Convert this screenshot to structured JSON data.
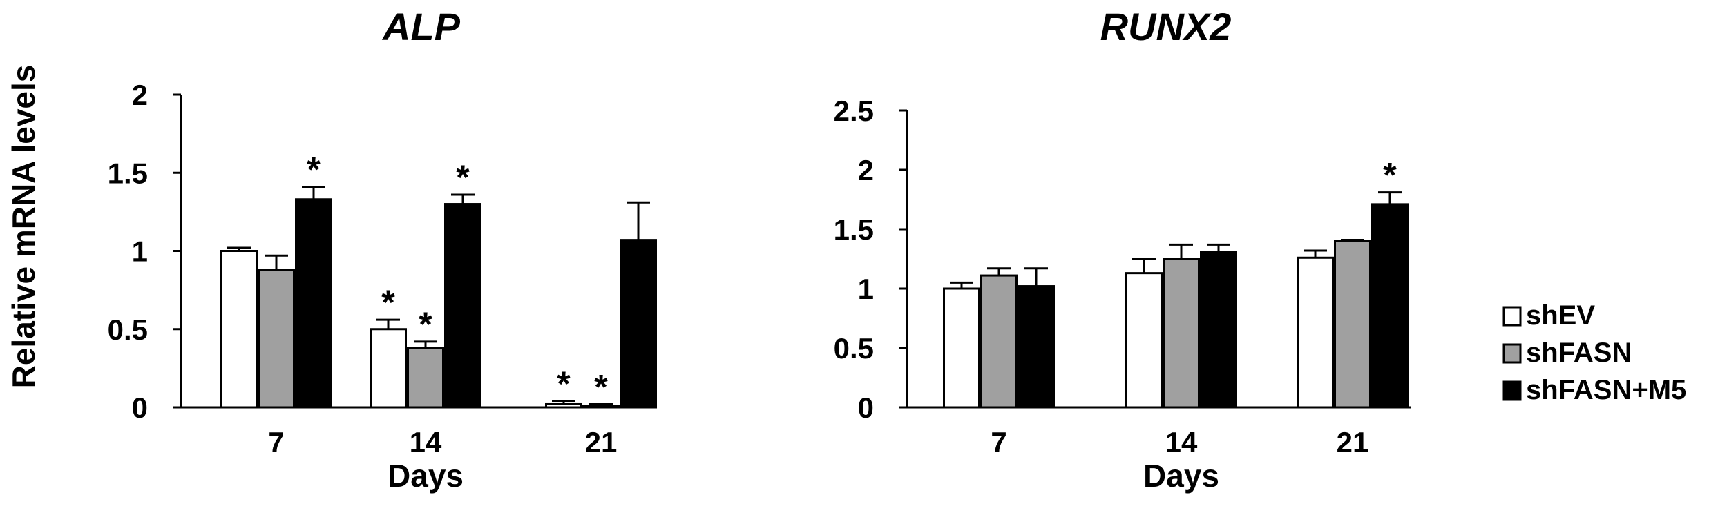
{
  "ylabel": "Relative mRNA levels",
  "chart_data": [
    {
      "type": "bar",
      "title": "ALP",
      "xlabel": "Days",
      "categories": [
        "7",
        "14",
        "21"
      ],
      "ylim": [
        0,
        2
      ],
      "yticks": [
        "0",
        "0.5",
        "1",
        "1.5",
        "2"
      ],
      "series": [
        {
          "name": "shEV",
          "values": [
            1.0,
            0.5,
            0.02
          ],
          "errors": [
            0.02,
            0.06,
            0.02
          ],
          "significant": [
            false,
            true,
            true
          ]
        },
        {
          "name": "shFASN",
          "values": [
            0.88,
            0.38,
            0.01
          ],
          "errors": [
            0.09,
            0.04,
            0.01
          ],
          "significant": [
            false,
            true,
            true
          ]
        },
        {
          "name": "shFASN+M5",
          "values": [
            1.33,
            1.3,
            1.07
          ],
          "errors": [
            0.08,
            0.06,
            0.24
          ],
          "significant": [
            true,
            true,
            false
          ]
        }
      ],
      "legend": "none"
    },
    {
      "type": "bar",
      "title": "RUNX2",
      "xlabel": "Days",
      "categories": [
        "7",
        "14",
        "21"
      ],
      "ylim": [
        0,
        2.5
      ],
      "yticks": [
        "0",
        "0.5",
        "1",
        "1.5",
        "2",
        "2.5"
      ],
      "series": [
        {
          "name": "shEV",
          "values": [
            1.0,
            1.13,
            1.26
          ],
          "errors": [
            0.05,
            0.12,
            0.06
          ],
          "significant": [
            false,
            false,
            false
          ]
        },
        {
          "name": "shFASN",
          "values": [
            1.11,
            1.25,
            1.4
          ],
          "errors": [
            0.06,
            0.12,
            0.01
          ],
          "significant": [
            false,
            false,
            false
          ]
        },
        {
          "name": "shFASN+M5",
          "values": [
            1.02,
            1.31,
            1.71
          ],
          "errors": [
            0.15,
            0.06,
            0.1
          ],
          "significant": [
            false,
            false,
            true
          ]
        }
      ],
      "legend": "right"
    }
  ],
  "significance_marker": "*",
  "legend": [
    {
      "label": "shEV",
      "color": "#ffffff"
    },
    {
      "label": "shFASN",
      "color": "#a0a0a0"
    },
    {
      "label": "shFASN+M5",
      "color": "#000000"
    }
  ],
  "colors": {
    "shEV": "#ffffff",
    "shFASN": "#a0a0a0",
    "shFASN+M5": "#000000",
    "edge": "#000000"
  }
}
